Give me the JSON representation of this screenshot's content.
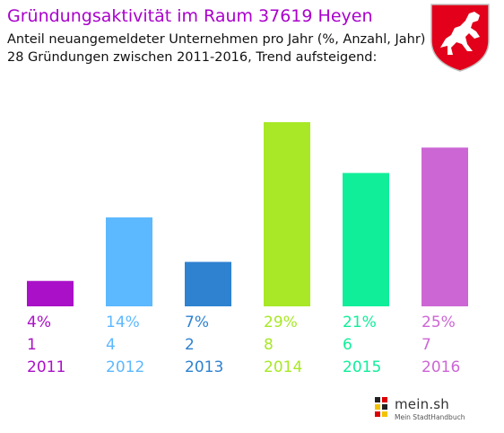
{
  "header": {
    "title": "Gründungsaktivität im Raum 37619 Heyen",
    "subtitle_1": "Anteil neuangemeldeter Unternehmen pro Jahr (%, Anzahl, Jahr)",
    "subtitle_2": "28 Gründungen zwischen 2011-2016, Trend aufsteigend:"
  },
  "branding": {
    "crest_icon": "lower-saxony-horse-crest-icon",
    "logo_text": "mein.sh",
    "logo_subtext": "Mein StadtHandbuch"
  },
  "chart_data": {
    "type": "bar",
    "categories": [
      "2011",
      "2012",
      "2013",
      "2014",
      "2015",
      "2016"
    ],
    "series": [
      {
        "percent_labels": [
          "4%",
          "14%",
          "7%",
          "29%",
          "21%",
          "25%"
        ],
        "percent_values": [
          4,
          14,
          7,
          29,
          21,
          25
        ],
        "counts": [
          "1",
          "4",
          "2",
          "8",
          "6",
          "7"
        ],
        "colors": [
          "#aa10c8",
          "#5cb8ff",
          "#2e82d0",
          "#a8e826",
          "#10ee9a",
          "#cc66d4"
        ]
      }
    ],
    "ylim": [
      0,
      29
    ],
    "grid": false,
    "legend": "none"
  }
}
